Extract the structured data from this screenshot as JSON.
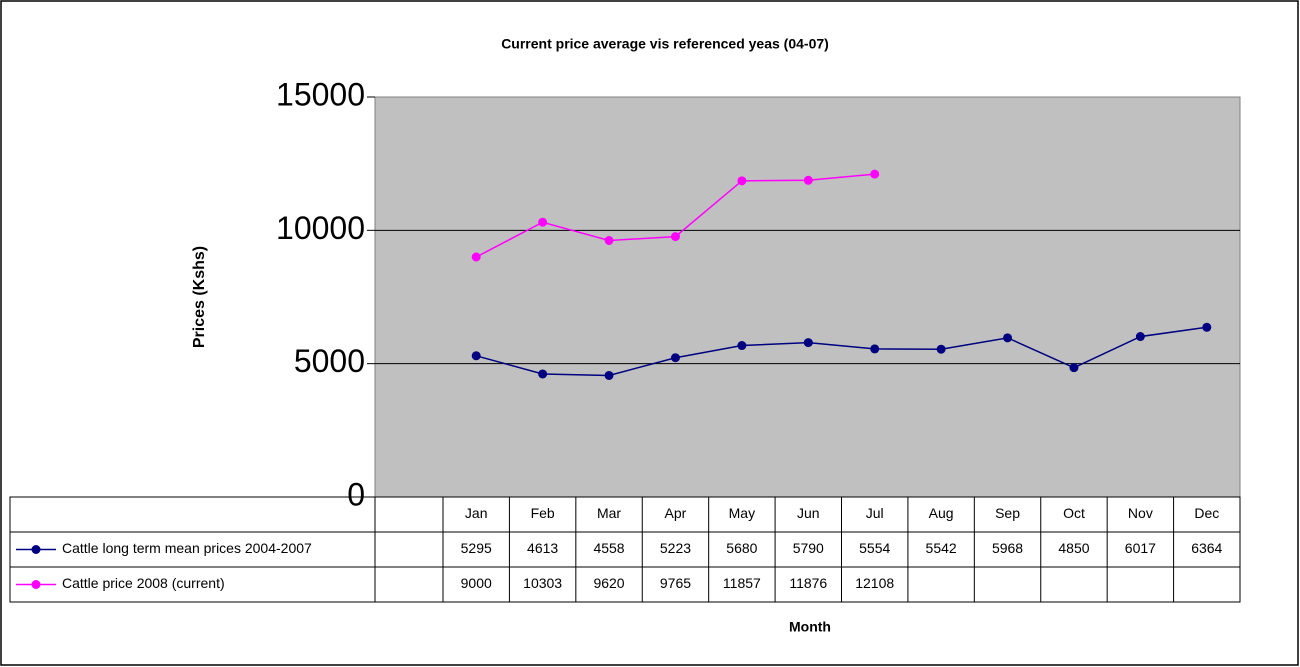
{
  "chart_data": {
    "type": "line",
    "title": "Current price average  vis referenced yeas (04-07)",
    "ylabel": "Prices (Kshs)",
    "xlabel": "Month",
    "categories": [
      "Jan",
      "Feb",
      "Mar",
      "Apr",
      "May",
      "Jun",
      "Jul",
      "Aug",
      "Sep",
      "Oct",
      "Nov",
      "Dec"
    ],
    "series": [
      {
        "name": "Cattle long term mean prices 2004-2007",
        "color": "#000080",
        "values": [
          5295,
          4613,
          4558,
          5223,
          5680,
          5790,
          5554,
          5542,
          5968,
          4850,
          6017,
          6364
        ]
      },
      {
        "name": "Cattle price 2008 (current)",
        "color": "#ff00ff",
        "values": [
          9000,
          10303,
          9620,
          9765,
          11857,
          11876,
          12108,
          null,
          null,
          null,
          null,
          null
        ]
      }
    ],
    "ylim": [
      0,
      15000
    ],
    "yticks": [
      0,
      5000,
      10000,
      15000
    ],
    "grid": true
  }
}
